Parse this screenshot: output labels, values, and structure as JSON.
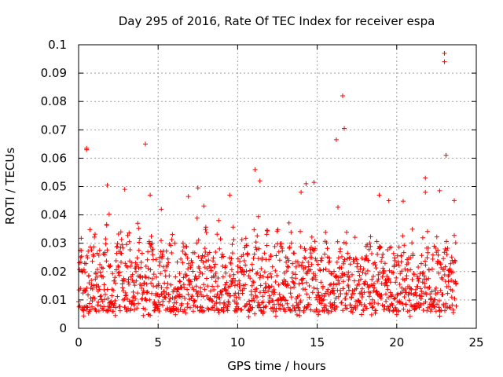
{
  "chart_data": {
    "type": "scatter",
    "title": "Day 295 of 2016, Rate Of TEC Index for receiver espa",
    "xlabel": "GPS time / hours",
    "ylabel": "ROTI / TECUs",
    "xlim": [
      0,
      25
    ],
    "ylim": [
      0,
      0.1
    ],
    "xticks": [
      "0",
      "5",
      "10",
      "15",
      "20",
      "25"
    ],
    "yticks": [
      "0",
      "0.01",
      "0.02",
      "0.03",
      "0.04",
      "0.05",
      "0.06",
      "0.07",
      "0.08",
      "0.09",
      "0.1"
    ],
    "grid": true,
    "marker": "+",
    "color": "#ff0000",
    "data_range_hours": [
      0,
      23.75
    ],
    "typical_band": [
      0.006,
      0.025
    ],
    "notable_points": [
      {
        "x": 0.5,
        "y": 0.063
      },
      {
        "x": 0.5,
        "y": 0.0635
      },
      {
        "x": 1.8,
        "y": 0.0505
      },
      {
        "x": 2.9,
        "y": 0.049
      },
      {
        "x": 4.2,
        "y": 0.065
      },
      {
        "x": 4.5,
        "y": 0.047
      },
      {
        "x": 5.2,
        "y": 0.042
      },
      {
        "x": 6.9,
        "y": 0.0465
      },
      {
        "x": 7.5,
        "y": 0.0495
      },
      {
        "x": 9.5,
        "y": 0.047
      },
      {
        "x": 11.1,
        "y": 0.056
      },
      {
        "x": 11.4,
        "y": 0.052
      },
      {
        "x": 14.3,
        "y": 0.051
      },
      {
        "x": 14.8,
        "y": 0.0515
      },
      {
        "x": 16.2,
        "y": 0.0665
      },
      {
        "x": 16.6,
        "y": 0.082
      },
      {
        "x": 16.7,
        "y": 0.0705
      },
      {
        "x": 18.9,
        "y": 0.047
      },
      {
        "x": 19.5,
        "y": 0.045
      },
      {
        "x": 21.8,
        "y": 0.053
      },
      {
        "x": 21.8,
        "y": 0.048
      },
      {
        "x": 22.7,
        "y": 0.0485
      },
      {
        "x": 23.0,
        "y": 0.097
      },
      {
        "x": 23.0,
        "y": 0.094
      },
      {
        "x": 23.1,
        "y": 0.061
      }
    ]
  }
}
